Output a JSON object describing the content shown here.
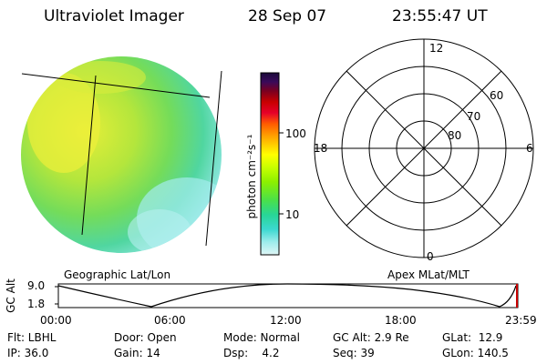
{
  "header": {
    "title": "Ultraviolet Imager",
    "date": "28 Sep 07",
    "time": "23:55:47 UT"
  },
  "colorbar": {
    "label": "photon cm⁻²s⁻¹",
    "ticks": [
      "100",
      "10"
    ],
    "colors": [
      "#1a0a3a",
      "#3a0a5a",
      "#7a0020",
      "#c80000",
      "#e6002a",
      "#ff5a00",
      "#ff9a00",
      "#ffd200",
      "#ffff00",
      "#c8ff00",
      "#8cf000",
      "#4ae04a",
      "#28d696",
      "#3cd8d0",
      "#9eecec",
      "#dff6f6"
    ]
  },
  "image_panel": {
    "caption": "Geographic Lat/Lon"
  },
  "polar_panel": {
    "caption": "Apex MLat/MLT",
    "mlt_labels": [
      "12",
      "18",
      "6",
      "0"
    ],
    "mlat_labels": [
      "60",
      "70",
      "80"
    ]
  },
  "altitude_plot": {
    "ylabel": "GC Alt",
    "y_ticks": [
      "9.0",
      "1.8"
    ],
    "x_ticks": [
      "00:00",
      "06:00",
      "12:00",
      "18:00",
      "23:59"
    ]
  },
  "status": {
    "flt": "Flt: LBHL",
    "ip": "IP: 36.0",
    "door": "Door: Open",
    "gain": "Gain: 14",
    "mode": "Mode: Normal",
    "dsp": "Dsp:    4.2",
    "gcalt": "GC Alt: 2.9 Re",
    "seq": "Seq: 39",
    "glat": "GLat:  12.9",
    "glon": "GLon: 140.5"
  }
}
